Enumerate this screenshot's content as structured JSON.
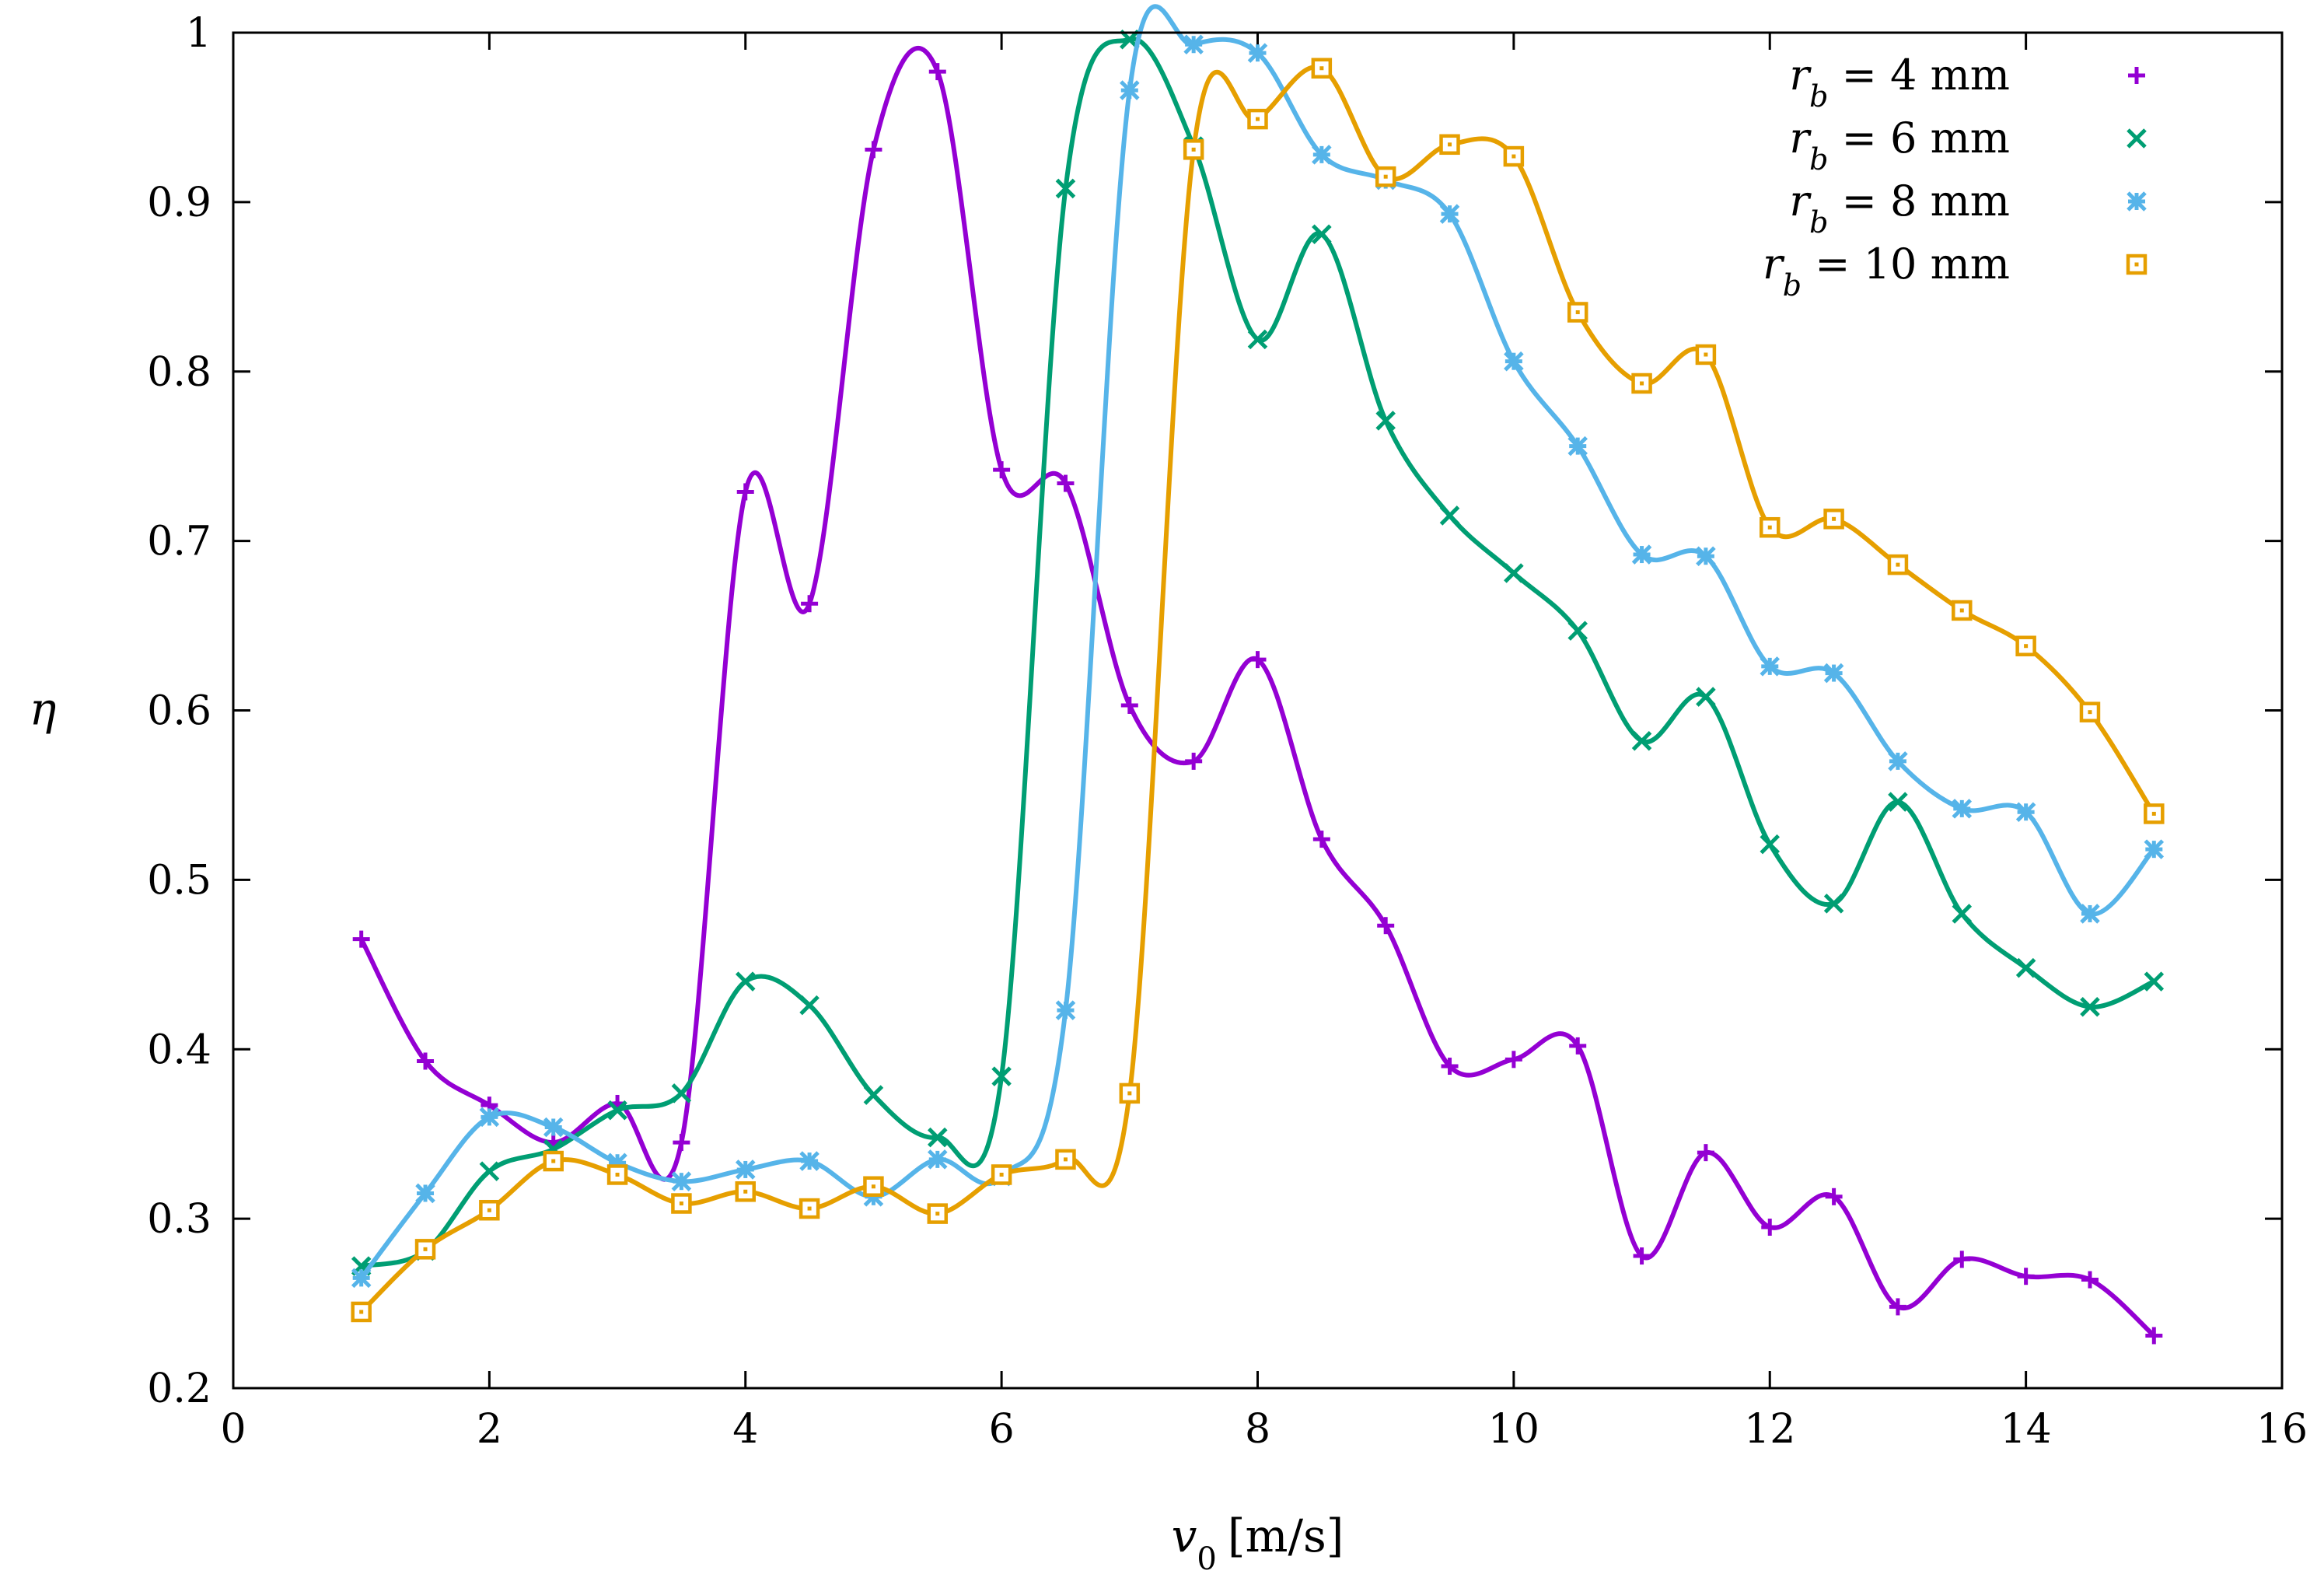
{
  "chart_data": {
    "type": "line",
    "title": "",
    "xlabel_var": "v",
    "xlabel_sub": "0",
    "xlabel_unit": "[m/s]",
    "ylabel": "η",
    "xlim": [
      0,
      16
    ],
    "ylim": [
      0.2,
      1.0
    ],
    "x_ticks": [
      0,
      2,
      4,
      6,
      8,
      10,
      12,
      14,
      16
    ],
    "y_ticks": [
      0.2,
      0.3,
      0.4,
      0.5,
      0.6,
      0.7,
      0.8,
      0.9,
      1.0
    ],
    "x_tick_labels": [
      "0",
      "2",
      "4",
      "6",
      "8",
      "10",
      "12",
      "14",
      "16"
    ],
    "y_tick_labels": [
      "0.2",
      "0.3",
      "0.4",
      "0.5",
      "0.6",
      "0.7",
      "0.8",
      "0.9",
      "1"
    ],
    "legend_position": "top-right",
    "x": [
      1,
      1.5,
      2,
      2.5,
      3,
      3.5,
      4,
      4.5,
      5,
      5.5,
      6,
      6.5,
      7,
      7.5,
      8,
      8.5,
      9,
      9.5,
      10,
      10.5,
      11,
      11.5,
      12,
      12.5,
      13,
      13.5,
      14,
      14.5,
      15
    ],
    "series": [
      {
        "name": "r_b = 4 mm",
        "label_var": "r",
        "label_sub": "b",
        "label_rest": " = 4 mm",
        "color": "#9400d3",
        "marker": "plus",
        "values": [
          0.465,
          0.393,
          0.367,
          0.345,
          0.368,
          0.345,
          0.729,
          0.663,
          0.931,
          0.977,
          0.742,
          0.734,
          0.603,
          0.57,
          0.63,
          0.524,
          0.473,
          0.39,
          0.394,
          0.402,
          0.278,
          0.339,
          0.295,
          0.313,
          0.248,
          0.276,
          0.266,
          0.264,
          0.231
        ]
      },
      {
        "name": "r_b = 6 mm",
        "label_var": "r",
        "label_sub": "b",
        "label_rest": " = 6 mm",
        "color": "#009e73",
        "marker": "cross",
        "values": [
          0.272,
          0.281,
          0.328,
          0.341,
          0.364,
          0.374,
          0.44,
          0.426,
          0.373,
          0.348,
          0.384,
          0.908,
          0.996,
          0.933,
          0.819,
          0.881,
          0.771,
          0.715,
          0.681,
          0.647,
          0.582,
          0.608,
          0.521,
          0.486,
          0.546,
          0.48,
          0.448,
          0.425,
          0.44
        ]
      },
      {
        "name": "r_b = 8 mm",
        "label_var": "r",
        "label_sub": "b",
        "label_rest": " = 8 mm",
        "color": "#56b4e9",
        "marker": "star",
        "values": [
          0.265,
          0.315,
          0.36,
          0.354,
          0.333,
          0.322,
          0.329,
          0.334,
          0.313,
          0.335,
          0.325,
          0.423,
          0.966,
          0.993,
          0.988,
          0.928,
          0.913,
          0.893,
          0.806,
          0.756,
          0.692,
          0.691,
          0.626,
          0.622,
          0.57,
          0.542,
          0.54,
          0.48,
          0.518
        ]
      },
      {
        "name": "r_b = 10 mm",
        "label_var": "r",
        "label_sub": "b",
        "label_rest": " = 10 mm",
        "color": "#e69f00",
        "marker": "square",
        "values": [
          0.245,
          0.282,
          0.305,
          0.334,
          0.326,
          0.309,
          0.316,
          0.306,
          0.319,
          0.303,
          0.326,
          0.335,
          0.374,
          0.931,
          0.949,
          0.979,
          0.915,
          0.934,
          0.927,
          0.835,
          0.793,
          0.81,
          0.708,
          0.713,
          0.686,
          0.659,
          0.638,
          0.599,
          0.539
        ]
      }
    ]
  }
}
